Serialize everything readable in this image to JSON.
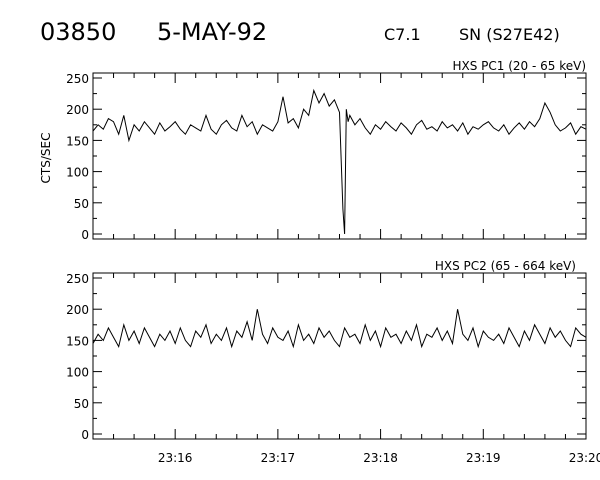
{
  "header": {
    "event_id": "03850",
    "date": "5-MAY-92",
    "flare_class": "C7.1",
    "location": "SN (S27E42)"
  },
  "chart_data": [
    {
      "type": "line",
      "title": "HXS PC1 (20 - 65 keV)",
      "ylabel": "CTS/SEC",
      "xlabel": "",
      "ylim": [
        0,
        250
      ],
      "yticks": [
        "0",
        "50",
        "100",
        "150",
        "200",
        "250"
      ],
      "xlim": [
        "23:15:12",
        "23:20:00"
      ],
      "xticks": [
        "23:16",
        "23:17",
        "23:18",
        "23:19",
        "23:20"
      ],
      "grid": false,
      "series": [
        {
          "x": [
            "23:15:12",
            "23:15:15",
            "23:15:18",
            "23:15:21",
            "23:15:24",
            "23:15:27",
            "23:15:30",
            "23:15:33",
            "23:15:36",
            "23:15:39",
            "23:15:42",
            "23:15:45",
            "23:15:48",
            "23:15:51",
            "23:15:54",
            "23:15:57",
            "23:16:00",
            "23:16:03",
            "23:16:06",
            "23:16:09",
            "23:16:12",
            "23:16:15",
            "23:16:18",
            "23:16:21",
            "23:16:24",
            "23:16:27",
            "23:16:30",
            "23:16:33",
            "23:16:36",
            "23:16:39",
            "23:16:42",
            "23:16:45",
            "23:16:48",
            "23:16:51",
            "23:16:54",
            "23:16:57",
            "23:17:00",
            "23:17:03",
            "23:17:06",
            "23:17:09",
            "23:17:12",
            "23:17:15",
            "23:17:18",
            "23:17:21",
            "23:17:24",
            "23:17:27",
            "23:17:30",
            "23:17:33",
            "23:17:36",
            "23:17:38",
            "23:17:39",
            "23:17:40",
            "23:17:41",
            "23:17:42",
            "23:17:45",
            "23:17:48",
            "23:17:51",
            "23:17:54",
            "23:17:57",
            "23:18:00",
            "23:18:03",
            "23:18:06",
            "23:18:09",
            "23:18:12",
            "23:18:15",
            "23:18:18",
            "23:18:21",
            "23:18:24",
            "23:18:27",
            "23:18:30",
            "23:18:33",
            "23:18:36",
            "23:18:39",
            "23:18:42",
            "23:18:45",
            "23:18:48",
            "23:18:51",
            "23:18:54",
            "23:18:57",
            "23:19:00",
            "23:19:03",
            "23:19:06",
            "23:19:09",
            "23:19:12",
            "23:19:15",
            "23:19:18",
            "23:19:21",
            "23:19:24",
            "23:19:27",
            "23:19:30",
            "23:19:33",
            "23:19:36",
            "23:19:39",
            "23:19:42",
            "23:19:45",
            "23:19:48",
            "23:19:51",
            "23:19:54",
            "23:19:57",
            "23:20:00"
          ],
          "y": [
            165,
            175,
            168,
            185,
            180,
            160,
            190,
            150,
            175,
            165,
            180,
            170,
            160,
            178,
            165,
            172,
            180,
            168,
            160,
            175,
            170,
            165,
            190,
            168,
            160,
            175,
            182,
            170,
            165,
            190,
            172,
            180,
            160,
            175,
            170,
            165,
            180,
            220,
            178,
            185,
            170,
            200,
            190,
            230,
            210,
            225,
            205,
            215,
            195,
            40,
            0,
            200,
            180,
            190,
            175,
            185,
            170,
            160,
            175,
            168,
            180,
            172,
            165,
            178,
            170,
            160,
            175,
            182,
            168,
            172,
            165,
            180,
            170,
            175,
            165,
            178,
            160,
            172,
            168,
            175,
            180,
            170,
            165,
            175,
            160,
            170,
            178,
            168,
            180,
            172,
            185,
            210,
            195,
            175,
            165,
            170,
            178,
            160,
            172,
            168
          ]
        }
      ]
    },
    {
      "type": "line",
      "title": "HXS PC2 (65 - 664 keV)",
      "ylabel": "",
      "xlabel": "",
      "ylim": [
        0,
        250
      ],
      "yticks": [
        "0",
        "50",
        "100",
        "150",
        "200",
        "250"
      ],
      "xlim": [
        "23:15:12",
        "23:20:00"
      ],
      "xticks": [
        "23:16",
        "23:17",
        "23:18",
        "23:19",
        "23:20"
      ],
      "grid": false,
      "series": [
        {
          "x": [
            "23:15:12",
            "23:15:15",
            "23:15:18",
            "23:15:21",
            "23:15:24",
            "23:15:27",
            "23:15:30",
            "23:15:33",
            "23:15:36",
            "23:15:39",
            "23:15:42",
            "23:15:45",
            "23:15:48",
            "23:15:51",
            "23:15:54",
            "23:15:57",
            "23:16:00",
            "23:16:03",
            "23:16:06",
            "23:16:09",
            "23:16:12",
            "23:16:15",
            "23:16:18",
            "23:16:21",
            "23:16:24",
            "23:16:27",
            "23:16:30",
            "23:16:33",
            "23:16:36",
            "23:16:39",
            "23:16:42",
            "23:16:45",
            "23:16:48",
            "23:16:51",
            "23:16:54",
            "23:16:57",
            "23:17:00",
            "23:17:03",
            "23:17:06",
            "23:17:09",
            "23:17:12",
            "23:17:15",
            "23:17:18",
            "23:17:21",
            "23:17:24",
            "23:17:27",
            "23:17:30",
            "23:17:33",
            "23:17:36",
            "23:17:39",
            "23:17:42",
            "23:17:45",
            "23:17:48",
            "23:17:51",
            "23:17:54",
            "23:17:57",
            "23:18:00",
            "23:18:03",
            "23:18:06",
            "23:18:09",
            "23:18:12",
            "23:18:15",
            "23:18:18",
            "23:18:21",
            "23:18:24",
            "23:18:27",
            "23:18:30",
            "23:18:33",
            "23:18:36",
            "23:18:39",
            "23:18:42",
            "23:18:45",
            "23:18:48",
            "23:18:51",
            "23:18:54",
            "23:18:57",
            "23:19:00",
            "23:19:03",
            "23:19:06",
            "23:19:09",
            "23:19:12",
            "23:19:15",
            "23:19:18",
            "23:19:21",
            "23:19:24",
            "23:19:27",
            "23:19:30",
            "23:19:33",
            "23:19:36",
            "23:19:39",
            "23:19:42",
            "23:19:45",
            "23:19:48",
            "23:19:51",
            "23:19:54",
            "23:19:57",
            "23:20:00"
          ],
          "y": [
            145,
            160,
            150,
            170,
            155,
            140,
            175,
            150,
            165,
            145,
            170,
            155,
            140,
            160,
            150,
            165,
            145,
            170,
            150,
            140,
            165,
            155,
            175,
            145,
            160,
            150,
            170,
            140,
            165,
            155,
            180,
            150,
            200,
            160,
            145,
            170,
            155,
            150,
            165,
            140,
            175,
            150,
            160,
            145,
            170,
            155,
            165,
            150,
            140,
            170,
            155,
            160,
            145,
            175,
            150,
            165,
            140,
            170,
            155,
            160,
            145,
            165,
            150,
            175,
            140,
            160,
            155,
            170,
            150,
            165,
            145,
            200,
            160,
            150,
            170,
            140,
            165,
            155,
            150,
            160,
            145,
            170,
            155,
            140,
            165,
            150,
            175,
            160,
            145,
            170,
            155,
            165,
            150,
            140,
            170,
            160,
            155
          ]
        }
      ]
    }
  ]
}
